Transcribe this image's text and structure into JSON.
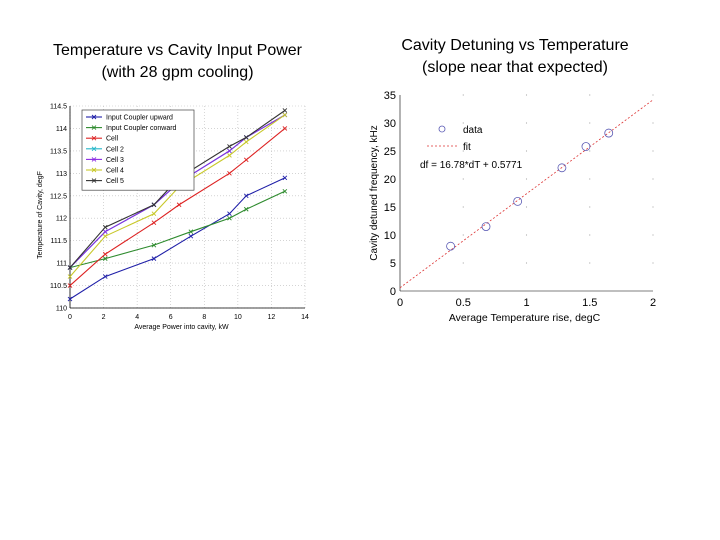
{
  "titles": {
    "left_line1": "Temperature vs Cavity Input Power",
    "left_line2": "(with 28 gpm cooling)",
    "right_line1": "Cavity Detuning vs Temperature",
    "right_line2": "(slope near that expected)"
  },
  "chart_data": [
    {
      "type": "line",
      "xlabel": "Average Power into cavity, kW",
      "ylabel": "Temperature of Cavity, degF",
      "xlim": [
        0,
        14
      ],
      "ylim": [
        110,
        114.5
      ],
      "xticks": [
        "0",
        "2",
        "4",
        "6",
        "8",
        "10",
        "12",
        "14"
      ],
      "yticks": [
        "110",
        "110.5",
        "111",
        "111.5",
        "112",
        "112.5",
        "113",
        "113.5",
        "114",
        "114.5"
      ],
      "grid": true,
      "legend_position": "top-left",
      "series": [
        {
          "name": "Input Coupler upward",
          "color": "#1f1fa8",
          "marker": "x",
          "x": [
            0,
            2.1,
            5,
            7.2,
            9.5,
            10.5,
            12.8
          ],
          "y": [
            110.2,
            110.7,
            111.1,
            111.6,
            112.1,
            112.5,
            112.9
          ]
        },
        {
          "name": "Input Coupler conward",
          "color": "#2e8b2e",
          "marker": "x",
          "x": [
            0,
            2.1,
            5,
            7.2,
            9.5,
            10.5,
            12.8
          ],
          "y": [
            110.9,
            111.1,
            111.4,
            111.7,
            112,
            112.2,
            112.6
          ]
        },
        {
          "name": "Cell",
          "color": "#dd2222",
          "marker": "x",
          "x": [
            0,
            2.1,
            5,
            6.5,
            9.5,
            10.5,
            12.8
          ],
          "y": [
            110.5,
            111.2,
            111.9,
            112.3,
            113,
            113.3,
            114
          ]
        },
        {
          "name": "Cell 2",
          "color": "#22b5c8",
          "marker": "x",
          "x": [
            0,
            2.1,
            5,
            6.5,
            9.5,
            10.5,
            12.8
          ],
          "y": [
            110.9,
            111.7,
            112.3,
            112.8,
            113.5,
            113.8,
            114.3
          ]
        },
        {
          "name": "Cell 3",
          "color": "#8a2be2",
          "marker": "x",
          "x": [
            0,
            2.1,
            5,
            6.5,
            9.5,
            10.5,
            12.8
          ],
          "y": [
            110.9,
            111.7,
            112.3,
            112.8,
            113.5,
            113.8,
            114.3
          ]
        },
        {
          "name": "Cell 4",
          "color": "#c8c82a",
          "marker": "x",
          "x": [
            0,
            2.1,
            5,
            6.5,
            9.5,
            10.5,
            12.8
          ],
          "y": [
            110.7,
            111.6,
            112.1,
            112.7,
            113.4,
            113.7,
            114.3
          ]
        },
        {
          "name": "Cell 5",
          "color": "#333333",
          "marker": "x",
          "x": [
            0,
            2.1,
            5,
            6.5,
            9.5,
            10.5,
            12.8
          ],
          "y": [
            110.9,
            111.8,
            112.3,
            112.9,
            113.6,
            113.8,
            114.4
          ]
        }
      ]
    },
    {
      "type": "scatter",
      "xlabel": "Average Temperature rise, degC",
      "ylabel": "Cavity detuned frequency, kHz",
      "xlim": [
        0,
        2
      ],
      "ylim": [
        0,
        35
      ],
      "xticks": [
        "0",
        "0.5",
        "1",
        "1.5",
        "2"
      ],
      "yticks": [
        "0",
        "5",
        "10",
        "15",
        "20",
        "25",
        "30",
        "35"
      ],
      "grid": false,
      "legend_position": "top-left",
      "series": [
        {
          "name": "data",
          "color": "#5a5ab4",
          "marker": "o",
          "x": [
            0.4,
            0.68,
            0.93,
            1.28,
            1.47,
            1.65
          ],
          "y": [
            8,
            11.5,
            16,
            22,
            25.8,
            28.2
          ]
        },
        {
          "name": "fit",
          "color": "#dd3333",
          "style": "dashed",
          "x": [
            0,
            2
          ],
          "y": [
            0.5771,
            34.1371
          ]
        }
      ],
      "annotations": [
        "df = 16.78*dT + 0.5771"
      ]
    }
  ]
}
